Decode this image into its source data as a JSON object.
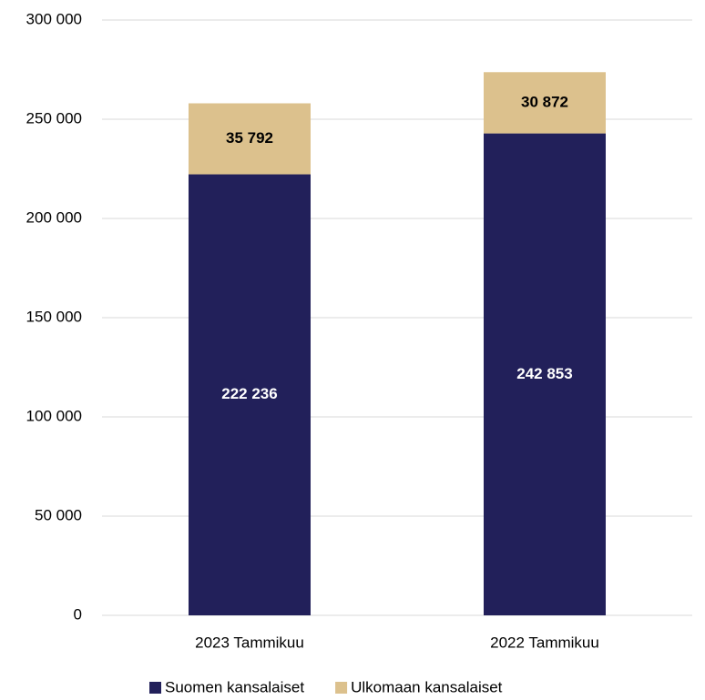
{
  "chart_data": {
    "type": "stacked_bar",
    "categories": [
      "2023 Tammikuu",
      "2022 Tammikuu"
    ],
    "series": [
      {
        "name": "Suomen kansalaiset",
        "color": "#22205a",
        "values": [
          222236,
          242853
        ],
        "value_labels": [
          "222 236",
          "242 853"
        ],
        "label_color": "#ffffff"
      },
      {
        "name": "Ulkomaan kansalaiset",
        "color": "#dcc18d",
        "values": [
          35792,
          30872
        ],
        "value_labels": [
          "35 792",
          "30 872"
        ],
        "label_color": "#000000"
      }
    ],
    "ylim": [
      0,
      300000
    ],
    "yticks": [
      0,
      {
        "value": 50000,
        "label": "50 000"
      },
      {
        "value": 100000,
        "label": "100 000"
      },
      {
        "value": 150000,
        "label": "150 000"
      },
      {
        "value": 200000,
        "label": "200 000"
      },
      {
        "value": 250000,
        "label": "250 000"
      },
      {
        "value": 300000,
        "label": "300 000"
      }
    ],
    "grid": true,
    "legend": "bottom"
  }
}
